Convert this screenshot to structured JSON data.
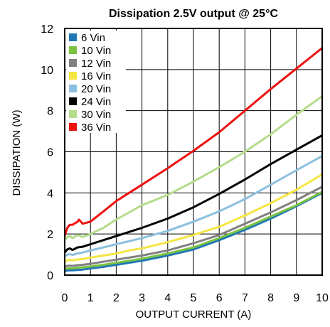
{
  "chart_data": {
    "type": "line",
    "title": "Dissipation 2.5V output @ 25°C",
    "xlabel": "OUTPUT CURRENT (A)",
    "ylabel": "DISSIPATION (W)",
    "xlim": [
      0,
      10
    ],
    "ylim": [
      0,
      12
    ],
    "xticks": [
      0,
      1,
      2,
      3,
      4,
      5,
      6,
      7,
      8,
      9,
      10
    ],
    "yticks": [
      0,
      2,
      4,
      6,
      8,
      10,
      12
    ],
    "grid": true,
    "legend_position": "top-left",
    "series": [
      {
        "name": "6 Vin",
        "color": "#1f77b4",
        "x": [
          0,
          0.1,
          0.2,
          0.3,
          0.5,
          0.7,
          1,
          1.5,
          2,
          2.5,
          3,
          4,
          5,
          6,
          7,
          8,
          9,
          10
        ],
        "y": [
          0.2,
          0.22,
          0.23,
          0.23,
          0.25,
          0.27,
          0.32,
          0.4,
          0.5,
          0.6,
          0.7,
          0.95,
          1.25,
          1.7,
          2.2,
          2.75,
          3.35,
          4.0
        ]
      },
      {
        "name": "10 Vin",
        "color": "#7cc242",
        "x": [
          0,
          0.1,
          0.2,
          0.3,
          0.5,
          0.7,
          1,
          1.5,
          2,
          2.5,
          3,
          4,
          5,
          6,
          7,
          8,
          9,
          10
        ],
        "y": [
          0.3,
          0.32,
          0.33,
          0.33,
          0.36,
          0.38,
          0.42,
          0.5,
          0.6,
          0.7,
          0.8,
          1.05,
          1.35,
          1.8,
          2.3,
          2.85,
          3.4,
          4.05
        ]
      },
      {
        "name": "12 Vin",
        "color": "#808080",
        "x": [
          0,
          0.1,
          0.2,
          0.3,
          0.5,
          0.7,
          1,
          1.5,
          2,
          2.5,
          3,
          4,
          5,
          6,
          7,
          8,
          9,
          10
        ],
        "y": [
          0.4,
          0.45,
          0.46,
          0.45,
          0.48,
          0.5,
          0.55,
          0.65,
          0.75,
          0.85,
          0.95,
          1.2,
          1.55,
          1.95,
          2.5,
          3.05,
          3.65,
          4.3
        ]
      },
      {
        "name": "16 Vin",
        "color": "#f5e642",
        "x": [
          0,
          0.1,
          0.2,
          0.3,
          0.5,
          0.7,
          1,
          1.5,
          2,
          2.5,
          3,
          4,
          5,
          6,
          7,
          8,
          9,
          10
        ],
        "y": [
          0.65,
          0.72,
          0.74,
          0.72,
          0.76,
          0.78,
          0.85,
          0.95,
          1.05,
          1.2,
          1.3,
          1.6,
          1.95,
          2.35,
          2.9,
          3.5,
          4.15,
          4.9
        ]
      },
      {
        "name": "20 Vin",
        "color": "#8cc0e0",
        "x": [
          0,
          0.1,
          0.2,
          0.3,
          0.5,
          0.7,
          1,
          1.5,
          2,
          2.5,
          3,
          4,
          5,
          6,
          7,
          8,
          9,
          10
        ],
        "y": [
          0.9,
          1.0,
          1.02,
          0.98,
          1.05,
          1.1,
          1.2,
          1.35,
          1.5,
          1.65,
          1.8,
          2.15,
          2.6,
          3.1,
          3.7,
          4.4,
          5.1,
          5.8
        ]
      },
      {
        "name": "24 Vin",
        "color": "#000000",
        "x": [
          0,
          0.1,
          0.2,
          0.3,
          0.5,
          0.7,
          1,
          1.5,
          2,
          2.5,
          3,
          4,
          5,
          6,
          7,
          8,
          9,
          10
        ],
        "y": [
          1.1,
          1.25,
          1.3,
          1.22,
          1.35,
          1.38,
          1.5,
          1.7,
          1.9,
          2.1,
          2.3,
          2.75,
          3.3,
          3.95,
          4.65,
          5.4,
          6.1,
          6.8
        ]
      },
      {
        "name": "30 Vin",
        "color": "#b4dc8c",
        "x": [
          0,
          0.1,
          0.2,
          0.3,
          0.5,
          0.7,
          1,
          1.5,
          2,
          2.5,
          3,
          4,
          5,
          6,
          7,
          8,
          9,
          10
        ],
        "y": [
          1.7,
          1.85,
          1.9,
          1.8,
          1.95,
          1.85,
          2.0,
          2.3,
          2.7,
          3.05,
          3.4,
          3.9,
          4.55,
          5.25,
          6.0,
          6.85,
          7.8,
          8.7
        ]
      },
      {
        "name": "36 Vin",
        "color": "#ee1111",
        "x": [
          0,
          0.1,
          0.2,
          0.3,
          0.5,
          0.55,
          0.7,
          1,
          1.5,
          2,
          2.5,
          3,
          4,
          5,
          6,
          7,
          8,
          9,
          10
        ],
        "y": [
          1.9,
          2.3,
          2.45,
          2.45,
          2.6,
          2.7,
          2.5,
          2.6,
          3.1,
          3.6,
          4.0,
          4.4,
          5.2,
          6.05,
          6.95,
          8.0,
          9.05,
          10.05,
          11.05
        ]
      }
    ]
  }
}
